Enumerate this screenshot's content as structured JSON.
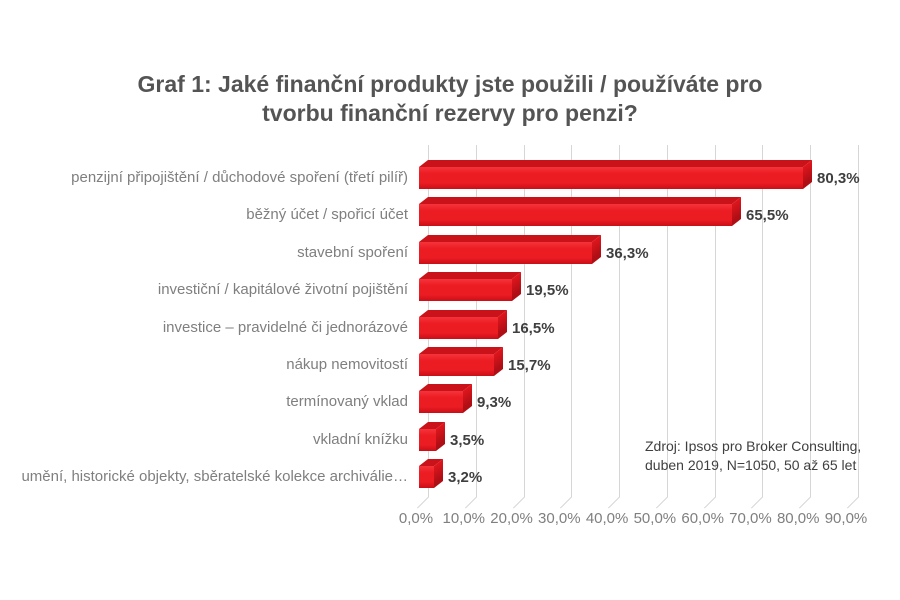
{
  "header": {
    "title_line1": "Graf 1: Jaké finanční produkty jste použili / používáte pro",
    "title_line2": "tvorbu finanční rezervy pro penzi?"
  },
  "chart_data": {
    "type": "bar",
    "orientation": "horizontal",
    "style": "3d-bevel",
    "title": "Graf 1: Jaké finanční produkty jste použili / používáte pro tvorbu finanční rezervy pro penzi?",
    "categories": [
      "penzijní připojištění / důchodové spoření (třetí pilíř)",
      "běžný účet / spořicí účet",
      "stavební spoření",
      "investiční / kapitálové životní pojištění",
      "investice – pravidelné či jednorázové",
      "nákup nemovitostí",
      "termínovaný vklad",
      "vkladní knížku",
      "umění, historické objekty, sběratelské kolekce archiválie…"
    ],
    "values": [
      80.3,
      65.5,
      36.3,
      19.5,
      16.5,
      15.7,
      9.3,
      3.5,
      3.2
    ],
    "value_labels": [
      "80,3%",
      "65,5%",
      "36,3%",
      "19,5%",
      "16,5%",
      "15,7%",
      "9,3%",
      "3,5%",
      "3,2%"
    ],
    "xlabel": "",
    "ylabel": "",
    "xlim": [
      0,
      90
    ],
    "x_ticks": [
      "0,0%",
      "10,0%",
      "20,0%",
      "30,0%",
      "40,0%",
      "50,0%",
      "60,0%",
      "70,0%",
      "80,0%",
      "90,0%"
    ],
    "grid": true,
    "legend": false,
    "bar_color": "#ec1c23",
    "bar_top_color": "#c9121a",
    "bar_end_color": "#b00e15"
  },
  "source_note": {
    "line1": "Zdroj: Ipsos pro Broker Consulting,",
    "line2": "duben 2019, N=1050, 50 až 65 let"
  },
  "colors": {
    "title": "#545454",
    "category_label": "#7f7f7f",
    "value_label": "#3f3f3f",
    "axis_label": "#7f7f7f",
    "gridline": "#d6d6d6",
    "source_text": "#3f3f3f"
  }
}
